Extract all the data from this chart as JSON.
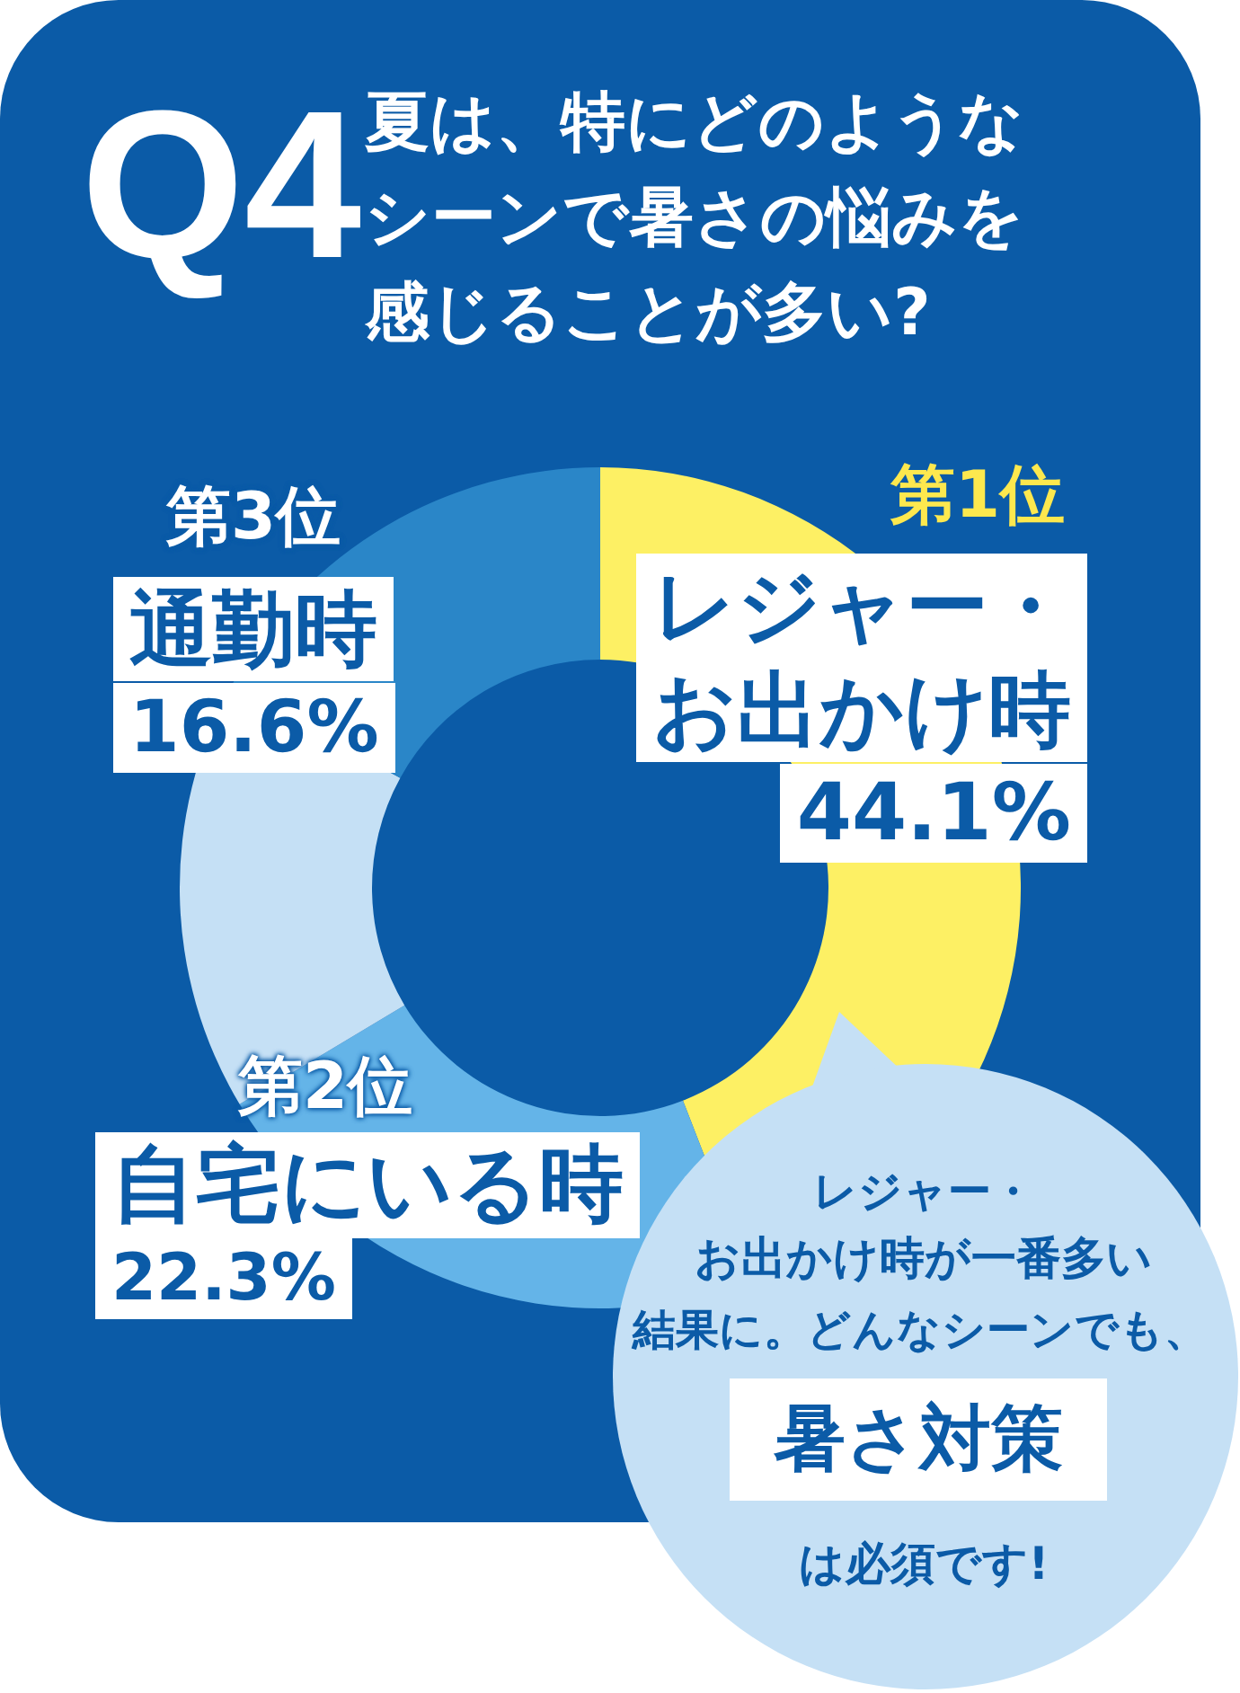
{
  "chart_data": {
    "type": "donut",
    "title": "夏は、特にどのようなシーンで暑さの悩みを感じることが多い?",
    "categories": [
      "レジャー・お出かけ時",
      "自宅にいる時",
      "通勤時",
      null
    ],
    "values": [
      44.1,
      22.3,
      16.6,
      17
    ],
    "colors": [
      "#fdf064",
      "#64b4e8",
      "#c5e0f5",
      "#2a86c8"
    ],
    "value_labels": [
      "44.1%",
      "22.3%",
      "16.6%",
      null
    ],
    "annotations": [
      "Q4",
      "第1位",
      "第2位",
      "第3位",
      "レジャー・",
      "お出かけ時が一番多い",
      "結果に。どんなシーンでも、",
      "暑さ対策",
      "は必須です!"
    ]
  }
}
